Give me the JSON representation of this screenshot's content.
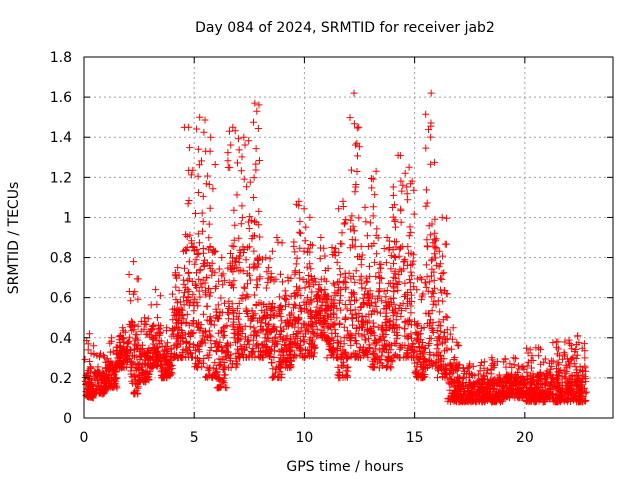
{
  "chart_data": {
    "type": "scatter",
    "title": "Day 084 of 2024, SRMTID for receiver jab2",
    "xlabel": "GPS time / hours",
    "ylabel": "SRMTID / TECUs",
    "xlim": [
      0,
      24
    ],
    "ylim": [
      0,
      1.8
    ],
    "xticks": [
      0,
      5,
      10,
      15,
      20
    ],
    "xtick_labels": [
      "0",
      "5",
      "10",
      "15",
      "20"
    ],
    "yticks": [
      0,
      0.2,
      0.4,
      0.6,
      0.8,
      1,
      1.2,
      1.4,
      1.6,
      1.8
    ],
    "ytick_labels": [
      "0",
      "0.2",
      "0.4",
      "0.6",
      "0.8",
      "1",
      "1.2",
      "1.4",
      "1.6",
      "1.8"
    ],
    "grid": true,
    "marker": "+",
    "marker_color": "#ff0000",
    "envelope_note": "approximate per-time-window ranges of the plotted points [x_start, x_end, y_min, y_max]",
    "envelope": [
      [
        0.0,
        0.5,
        0.1,
        0.42
      ],
      [
        0.5,
        1.0,
        0.12,
        0.32
      ],
      [
        1.0,
        1.5,
        0.15,
        0.4
      ],
      [
        1.5,
        2.0,
        0.25,
        0.45
      ],
      [
        2.0,
        2.5,
        0.12,
        0.78
      ],
      [
        2.5,
        3.0,
        0.18,
        0.5
      ],
      [
        3.0,
        3.5,
        0.25,
        0.64
      ],
      [
        3.5,
        4.0,
        0.2,
        0.45
      ],
      [
        4.0,
        4.5,
        0.3,
        0.75
      ],
      [
        4.5,
        5.0,
        0.3,
        1.45
      ],
      [
        5.0,
        5.5,
        0.25,
        1.5
      ],
      [
        5.5,
        6.0,
        0.2,
        1.4
      ],
      [
        6.0,
        6.5,
        0.15,
        0.8
      ],
      [
        6.5,
        7.0,
        0.25,
        1.45
      ],
      [
        7.0,
        7.5,
        0.3,
        1.4
      ],
      [
        7.5,
        8.0,
        0.3,
        1.57
      ],
      [
        8.0,
        8.5,
        0.3,
        0.8
      ],
      [
        8.5,
        9.0,
        0.2,
        0.9
      ],
      [
        9.0,
        9.5,
        0.25,
        0.7
      ],
      [
        9.5,
        10.0,
        0.3,
        1.08
      ],
      [
        10.0,
        10.5,
        0.3,
        1.0
      ],
      [
        10.5,
        11.0,
        0.4,
        0.9
      ],
      [
        11.0,
        11.5,
        0.3,
        0.85
      ],
      [
        11.5,
        12.0,
        0.2,
        1.08
      ],
      [
        12.0,
        12.5,
        0.3,
        1.62
      ],
      [
        12.5,
        13.0,
        0.3,
        1.05
      ],
      [
        13.0,
        13.5,
        0.25,
        1.23
      ],
      [
        13.5,
        14.0,
        0.25,
        0.9
      ],
      [
        14.0,
        14.5,
        0.3,
        1.31
      ],
      [
        14.5,
        15.0,
        0.3,
        1.25
      ],
      [
        15.0,
        15.5,
        0.2,
        0.7
      ],
      [
        15.5,
        16.0,
        0.25,
        1.62
      ],
      [
        16.0,
        16.5,
        0.2,
        1.0
      ],
      [
        16.5,
        17.0,
        0.08,
        0.45
      ],
      [
        17.0,
        18.0,
        0.08,
        0.27
      ],
      [
        18.0,
        19.0,
        0.08,
        0.3
      ],
      [
        19.0,
        20.0,
        0.1,
        0.3
      ],
      [
        20.0,
        21.0,
        0.08,
        0.35
      ],
      [
        21.0,
        22.0,
        0.08,
        0.38
      ],
      [
        22.0,
        22.8,
        0.08,
        0.41
      ]
    ]
  }
}
